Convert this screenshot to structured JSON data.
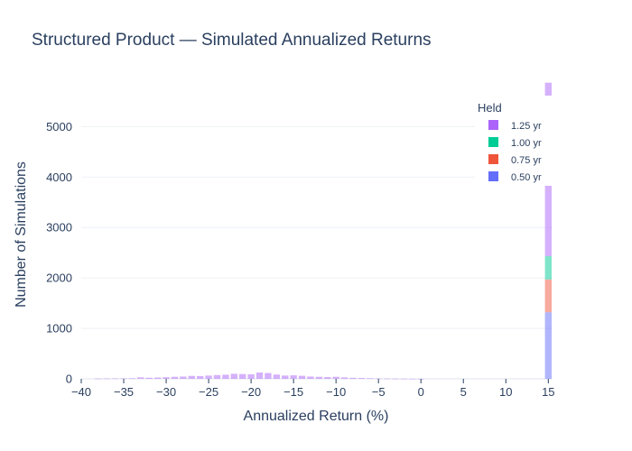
{
  "chart_data": {
    "type": "bar",
    "title": "Structured Product — Simulated Annualized Returns",
    "xlabel": "Annualized Return (%)",
    "ylabel": "Number of Simulations",
    "xlim": [
      -40,
      15.5
    ],
    "ylim": [
      0,
      5900
    ],
    "x_ticks": [
      "−40",
      "−35",
      "−30",
      "−25",
      "−20",
      "−15",
      "−10",
      "−5",
      "0",
      "5",
      "10",
      "15"
    ],
    "x_tick_values": [
      -40,
      -35,
      -30,
      -25,
      -20,
      -15,
      -10,
      -5,
      0,
      5,
      10,
      15
    ],
    "y_ticks": [
      "0",
      "1000",
      "2000",
      "3000",
      "4000",
      "5000"
    ],
    "y_tick_values": [
      0,
      1000,
      2000,
      3000,
      4000,
      5000
    ],
    "grid": true,
    "barmode": "stack",
    "legend": {
      "title": "Held",
      "placement": "top-right"
    },
    "series": [
      {
        "name": "1.25 yr",
        "color": "#ab63fa",
        "bins": [
          {
            "x": -38,
            "y": 6
          },
          {
            "x": -37,
            "y": 7
          },
          {
            "x": -36,
            "y": 8
          },
          {
            "x": -35,
            "y": 10
          },
          {
            "x": -34,
            "y": 12
          },
          {
            "x": -33,
            "y": 30
          },
          {
            "x": -32,
            "y": 22
          },
          {
            "x": -31,
            "y": 25
          },
          {
            "x": -30,
            "y": 33
          },
          {
            "x": -29,
            "y": 40
          },
          {
            "x": -28,
            "y": 45
          },
          {
            "x": -27,
            "y": 58
          },
          {
            "x": -26,
            "y": 55
          },
          {
            "x": -25,
            "y": 65
          },
          {
            "x": -24,
            "y": 75
          },
          {
            "x": -23,
            "y": 82
          },
          {
            "x": -22,
            "y": 100
          },
          {
            "x": -21,
            "y": 95
          },
          {
            "x": -20,
            "y": 90
          },
          {
            "x": -19,
            "y": 125
          },
          {
            "x": -18,
            "y": 115
          },
          {
            "x": -17,
            "y": 85
          },
          {
            "x": -16,
            "y": 65
          },
          {
            "x": -15,
            "y": 70
          },
          {
            "x": -14,
            "y": 60
          },
          {
            "x": -13,
            "y": 45
          },
          {
            "x": -12,
            "y": 40
          },
          {
            "x": -11,
            "y": 35
          },
          {
            "x": -10,
            "y": 40
          },
          {
            "x": -9,
            "y": 28
          },
          {
            "x": -8,
            "y": 20
          },
          {
            "x": -7,
            "y": 16
          },
          {
            "x": -6,
            "y": 12
          },
          {
            "x": -5,
            "y": 8
          },
          {
            "x": -4,
            "y": 6
          },
          {
            "x": -3,
            "y": 4
          },
          {
            "x": -2,
            "y": 3
          },
          {
            "x": -1,
            "y": 2
          },
          {
            "x": 0,
            "y": 1
          },
          {
            "x": 15,
            "y": 3440
          }
        ]
      },
      {
        "name": "1.00 yr",
        "color": "#00cc96",
        "bins": [
          {
            "x": 15,
            "y": 460
          }
        ]
      },
      {
        "name": "0.75 yr",
        "color": "#ef553b",
        "bins": [
          {
            "x": 15,
            "y": 650
          }
        ]
      },
      {
        "name": "0.50 yr",
        "color": "#636efa",
        "bins": [
          {
            "x": 15,
            "y": 1320
          }
        ]
      }
    ]
  }
}
